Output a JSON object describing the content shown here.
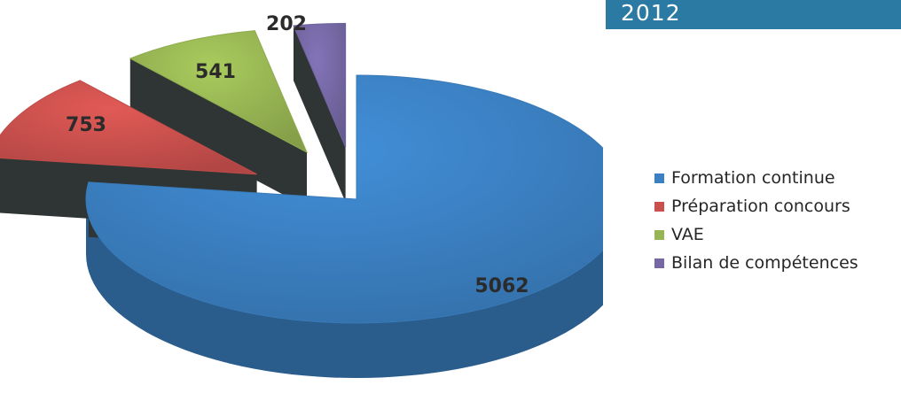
{
  "chart_data": {
    "type": "pie",
    "title": "2012",
    "categories": [
      "Formation continue",
      "Préparation concours",
      "VAE",
      "Bilan de compétences"
    ],
    "values": [
      5062,
      753,
      541,
      202
    ],
    "data_labels": [
      "5062",
      "753",
      "541",
      "202"
    ],
    "colors": [
      "#3b80c2",
      "#c9504d",
      "#97b553",
      "#7568a4"
    ],
    "legend_position": "right",
    "exploded": [
      "Préparation concours",
      "VAE",
      "Bilan de compétences"
    ],
    "three_d": true
  }
}
